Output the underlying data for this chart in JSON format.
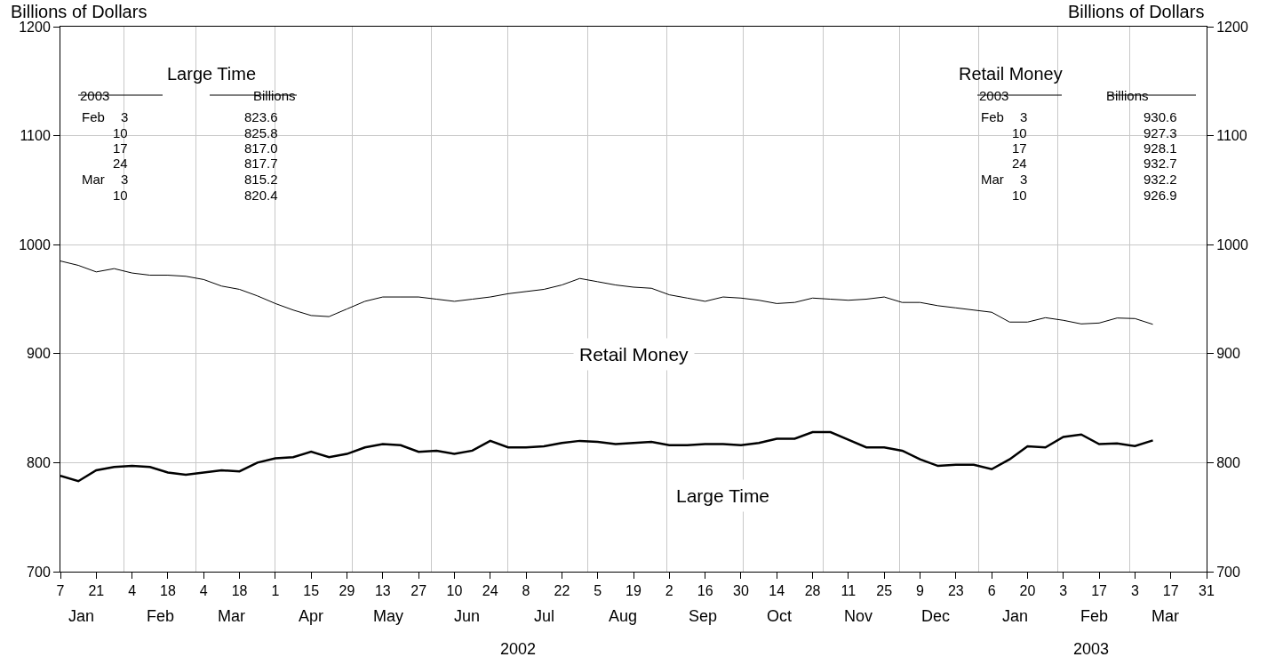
{
  "chart_data": {
    "type": "line",
    "ylabel": "Billions of Dollars",
    "y2label": "Billions of Dollars",
    "x": [
      "2002-01-07",
      "2002-01-14",
      "2002-01-21",
      "2002-01-28",
      "2002-02-04",
      "2002-02-11",
      "2002-02-18",
      "2002-02-25",
      "2002-03-04",
      "2002-03-11",
      "2002-03-18",
      "2002-03-25",
      "2002-04-01",
      "2002-04-08",
      "2002-04-15",
      "2002-04-22",
      "2002-04-29",
      "2002-05-06",
      "2002-05-13",
      "2002-05-20",
      "2002-05-27",
      "2002-06-03",
      "2002-06-10",
      "2002-06-17",
      "2002-06-24",
      "2002-07-01",
      "2002-07-08",
      "2002-07-15",
      "2002-07-22",
      "2002-07-29",
      "2002-08-05",
      "2002-08-12",
      "2002-08-19",
      "2002-08-26",
      "2002-09-02",
      "2002-09-09",
      "2002-09-16",
      "2002-09-23",
      "2002-09-30",
      "2002-10-07",
      "2002-10-14",
      "2002-10-21",
      "2002-10-28",
      "2002-11-04",
      "2002-11-11",
      "2002-11-18",
      "2002-11-25",
      "2002-12-02",
      "2002-12-09",
      "2002-12-16",
      "2002-12-23",
      "2002-12-30",
      "2003-01-06",
      "2003-01-13",
      "2003-01-20",
      "2003-01-27",
      "2003-02-03",
      "2003-02-10",
      "2003-02-17",
      "2003-02-24",
      "2003-03-03",
      "2003-03-10"
    ],
    "series": [
      {
        "name": "Retail Money",
        "color": "#000000",
        "values": [
          985,
          981,
          975,
          978,
          974,
          972,
          972,
          971,
          968,
          962,
          959,
          953,
          946,
          940,
          935,
          934,
          941,
          948,
          952,
          952,
          952,
          950,
          948,
          950,
          952,
          955,
          957,
          959,
          963,
          969,
          966,
          963,
          961,
          960,
          954,
          951,
          948,
          952,
          951,
          949,
          946,
          947,
          951,
          950,
          949,
          950,
          952,
          947,
          947,
          944,
          942,
          940,
          938,
          929,
          929,
          933,
          930.6,
          927.3,
          928.1,
          932.7,
          932.2,
          926.9
        ]
      },
      {
        "name": "Large Time",
        "color": "#000000",
        "values": [
          788,
          783,
          793,
          796,
          797,
          796,
          791,
          789,
          791,
          793,
          792,
          800,
          804,
          805,
          810,
          805,
          808,
          814,
          817,
          816,
          810,
          811,
          808,
          811,
          820,
          814,
          814,
          815,
          818,
          820,
          819,
          817,
          818,
          819,
          816,
          816,
          817,
          817,
          816,
          818,
          822,
          822,
          828,
          828,
          821,
          814,
          814,
          811,
          803,
          797,
          798,
          798,
          794,
          803,
          815,
          814,
          823.6,
          825.8,
          817.0,
          817.7,
          815.2,
          820.4
        ]
      }
    ],
    "xlim": [
      "2002-01-07",
      "2003-03-31"
    ],
    "xticks": [
      {
        "value": "2002-01-07",
        "label": "7"
      },
      {
        "value": "2002-01-21",
        "label": "21"
      },
      {
        "value": "2002-02-04",
        "label": "4"
      },
      {
        "value": "2002-02-18",
        "label": "18"
      },
      {
        "value": "2002-03-04",
        "label": "4"
      },
      {
        "value": "2002-03-18",
        "label": "18"
      },
      {
        "value": "2002-04-01",
        "label": "1"
      },
      {
        "value": "2002-04-15",
        "label": "15"
      },
      {
        "value": "2002-04-29",
        "label": "29"
      },
      {
        "value": "2002-05-13",
        "label": "13"
      },
      {
        "value": "2002-05-27",
        "label": "27"
      },
      {
        "value": "2002-06-10",
        "label": "10"
      },
      {
        "value": "2002-06-24",
        "label": "24"
      },
      {
        "value": "2002-07-08",
        "label": "8"
      },
      {
        "value": "2002-07-22",
        "label": "22"
      },
      {
        "value": "2002-08-05",
        "label": "5"
      },
      {
        "value": "2002-08-19",
        "label": "19"
      },
      {
        "value": "2002-09-02",
        "label": "2"
      },
      {
        "value": "2002-09-16",
        "label": "16"
      },
      {
        "value": "2002-09-30",
        "label": "30"
      },
      {
        "value": "2002-10-14",
        "label": "14"
      },
      {
        "value": "2002-10-28",
        "label": "28"
      },
      {
        "value": "2002-11-11",
        "label": "11"
      },
      {
        "value": "2002-11-25",
        "label": "25"
      },
      {
        "value": "2002-12-09",
        "label": "9"
      },
      {
        "value": "2002-12-23",
        "label": "23"
      },
      {
        "value": "2003-01-06",
        "label": "6"
      },
      {
        "value": "2003-01-20",
        "label": "20"
      },
      {
        "value": "2003-02-03",
        "label": "3"
      },
      {
        "value": "2003-02-17",
        "label": "17"
      },
      {
        "value": "2003-03-03",
        "label": "3"
      },
      {
        "value": "2003-03-17",
        "label": "17"
      },
      {
        "value": "2003-03-31",
        "label": "31"
      }
    ],
    "ylim": [
      700,
      1200
    ],
    "yticks": [
      700,
      800,
      900,
      1000,
      1100,
      1200
    ],
    "y2lim": [
      700,
      1200
    ],
    "y2ticks": [
      700,
      800,
      900,
      1000,
      1100,
      1200
    ],
    "grid": true,
    "legend": false,
    "marker": "none",
    "line_style": "solid",
    "annotations": [
      "Large Time\n2003\tBillions\nFeb\t3\t823.6\n\t10\t825.8\n\t17\t817.0\n\t24\t817.7\nMar\t3\t815.2\n\t10\t820.4",
      "Retail Money\n2003\tBillions\nFeb\t3\t930.6\n\t10\t927.3\n\t17\t928.1\n\t24\t932.7\nMar\t3\t932.2\n\t10\t926.9",
      "Jan",
      "Feb",
      "Mar",
      "Apr",
      "May",
      "Jun",
      "Jul",
      "Aug",
      "Sep",
      "Oct",
      "Nov",
      "Dec",
      "Jan",
      "Feb",
      "Mar",
      "2002",
      "2003"
    ]
  }
}
